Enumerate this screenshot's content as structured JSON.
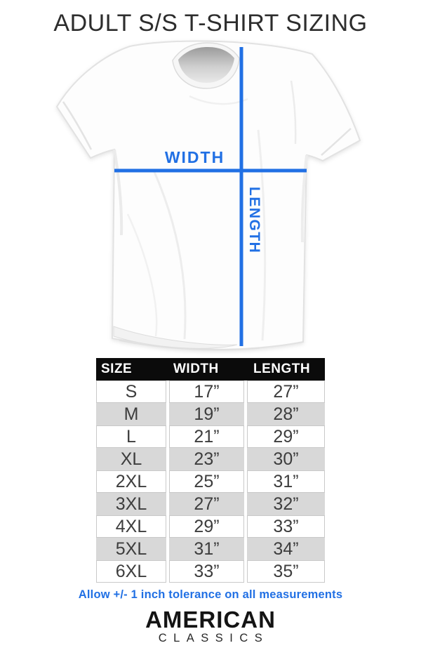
{
  "title": "ADULT S/S T-SHIRT SIZING",
  "diagram": {
    "width_label": "WIDTH",
    "length_label": "LENGTH"
  },
  "size_chart": {
    "columns": [
      "SIZE",
      "WIDTH",
      "LENGTH"
    ],
    "rows": [
      [
        "S",
        "17”",
        "27”"
      ],
      [
        "M",
        "19”",
        "28”"
      ],
      [
        "L",
        "21”",
        "29”"
      ],
      [
        "XL",
        "23”",
        "30”"
      ],
      [
        "2XL",
        "25”",
        "31”"
      ],
      [
        "3XL",
        "27”",
        "32”"
      ],
      [
        "4XL",
        "29”",
        "33”"
      ],
      [
        "5XL",
        "31”",
        "34”"
      ],
      [
        "6XL",
        "33”",
        "35”"
      ]
    ]
  },
  "note": "Allow +/- 1 inch tolerance on all measurements",
  "brand": {
    "name": "AMERICAN",
    "subname": "CLASSICS"
  },
  "colors": {
    "accent": "#2170e4",
    "header_bg": "#0b0b0b",
    "row_alt": "#d8d8d8"
  },
  "chart_data": {
    "type": "table",
    "title": "ADULT S/S T-SHIRT SIZING",
    "columns": [
      "SIZE",
      "WIDTH",
      "LENGTH"
    ],
    "units": "inches",
    "rows": [
      [
        "S",
        17,
        27
      ],
      [
        "M",
        19,
        28
      ],
      [
        "L",
        21,
        29
      ],
      [
        "XL",
        23,
        30
      ],
      [
        "2XL",
        25,
        31
      ],
      [
        "3XL",
        27,
        32
      ],
      [
        "4XL",
        29,
        33
      ],
      [
        "5XL",
        31,
        34
      ],
      [
        "6XL",
        33,
        35
      ]
    ],
    "note": "Allow +/- 1 inch tolerance on all measurements"
  }
}
